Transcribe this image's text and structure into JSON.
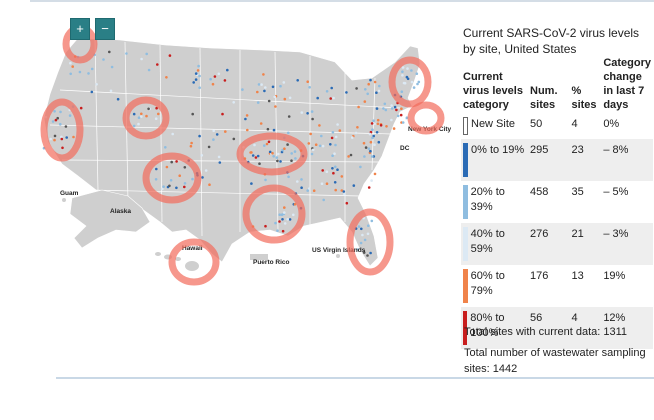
{
  "map": {
    "zoom_in_label": "+",
    "zoom_out_label": "−",
    "place_labels": {
      "guam": "Guam",
      "alaska": "Alaska",
      "hawaii": "Hawaii",
      "puerto_rico": "Puerto Rico",
      "us_virgin_islands": "US Virgin Islands",
      "new_york_city": "New York City",
      "dc": "DC"
    }
  },
  "legend": {
    "title": "Current SARS-CoV-2 virus levels by site, United States",
    "headers": {
      "category": "Current virus levels category",
      "num_sites": "Num. sites",
      "pct_sites": "% sites",
      "change": "Category change in last 7 days"
    },
    "rows": [
      {
        "category": "New Site",
        "num": "50",
        "pct": "4",
        "change": "0%",
        "color": "#ffffff"
      },
      {
        "category": "0% to 19%",
        "num": "295",
        "pct": "23",
        "change": "– 8%",
        "color": "#2b6bb5"
      },
      {
        "category": "20% to 39%",
        "num": "458",
        "pct": "35",
        "change": "– 5%",
        "color": "#8fbde0"
      },
      {
        "category": "40% to 59%",
        "num": "276",
        "pct": "21",
        "change": "– 3%",
        "color": "#dce9f4"
      },
      {
        "category": "60% to 79%",
        "num": "176",
        "pct": "13",
        "change": "19%",
        "color": "#f0834a"
      },
      {
        "category": "80% to 100%",
        "num": "56",
        "pct": "4",
        "change": "12%",
        "color": "#c81e1e"
      }
    ]
  },
  "footer": {
    "total_sites": "Total sites with current data: 1311",
    "total_sampling": "Total number of wastewater sampling sites: 1442"
  },
  "colors": {
    "annotation_circle": "#f26b5b",
    "land": "#cfcfcf",
    "zoom_button": "#2a7f86"
  }
}
